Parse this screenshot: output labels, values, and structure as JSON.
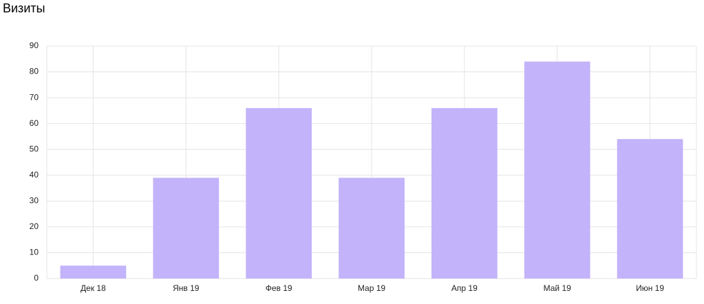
{
  "chart_data": {
    "type": "bar",
    "title": "Визиты",
    "categories": [
      "Дек 18",
      "Янв 19",
      "Фев 19",
      "Мар 19",
      "Апр 19",
      "Май 19",
      "Июн 19"
    ],
    "values": [
      5,
      39,
      66,
      39,
      66,
      84,
      54
    ],
    "color": "#c3b3fa",
    "ylim": [
      0,
      90
    ],
    "yticks": [
      0,
      10,
      20,
      30,
      40,
      50,
      60,
      70,
      80,
      90
    ],
    "grid": true
  }
}
